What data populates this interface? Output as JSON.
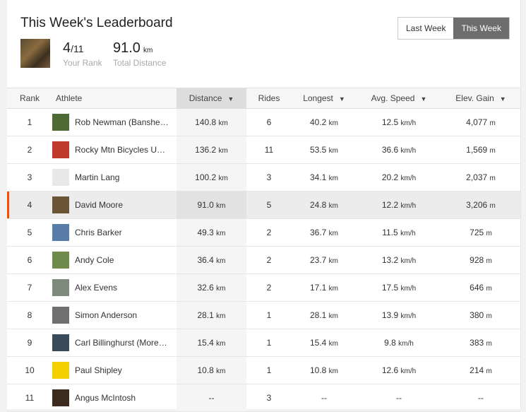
{
  "title": "This Week's Leaderboard",
  "summary": {
    "rank": "4",
    "rank_total": "/11",
    "rank_label": "Your Rank",
    "distance": "91.0",
    "distance_unit": "km",
    "distance_label": "Total Distance"
  },
  "toggle": {
    "last_week": "Last Week",
    "this_week": "This Week",
    "selected": "This Week"
  },
  "accent_color": "#fc4c02",
  "columns": [
    "Rank",
    "Athlete",
    "Distance",
    "Rides",
    "Longest",
    "Avg. Speed",
    "Elev. Gain"
  ],
  "sort_arrow": "▼",
  "rows": [
    {
      "rank": "1",
      "name": "Rob Newman (Banshe…",
      "distance": "140.8",
      "rides": "6",
      "longest": "40.2",
      "speed": "12.5",
      "elev": "4,077",
      "av": "#4f6a35"
    },
    {
      "rank": "2",
      "name": "Rocky Mtn Bicycles U…",
      "distance": "136.2",
      "rides": "11",
      "longest": "53.5",
      "speed": "36.6",
      "elev": "1,569",
      "av": "#c0392b"
    },
    {
      "rank": "3",
      "name": "Martin Lang",
      "distance": "100.2",
      "rides": "3",
      "longest": "34.1",
      "speed": "20.2",
      "elev": "2,037",
      "av": "#e8e8e8"
    },
    {
      "rank": "4",
      "name": "David Moore",
      "distance": "91.0",
      "rides": "5",
      "longest": "24.8",
      "speed": "12.2",
      "elev": "3,206",
      "av": "#6b5535"
    },
    {
      "rank": "5",
      "name": "Chris Barker",
      "distance": "49.3",
      "rides": "2",
      "longest": "36.7",
      "speed": "11.5",
      "elev": "725",
      "av": "#5a7ca8"
    },
    {
      "rank": "6",
      "name": "Andy Cole",
      "distance": "36.4",
      "rides": "2",
      "longest": "23.7",
      "speed": "13.2",
      "elev": "928",
      "av": "#6f8a4a"
    },
    {
      "rank": "7",
      "name": "Alex Evens",
      "distance": "32.6",
      "rides": "2",
      "longest": "17.1",
      "speed": "17.5",
      "elev": "646",
      "av": "#7d8b7a"
    },
    {
      "rank": "8",
      "name": "Simon Anderson",
      "distance": "28.1",
      "rides": "1",
      "longest": "28.1",
      "speed": "13.9",
      "elev": "380",
      "av": "#707070"
    },
    {
      "rank": "9",
      "name": "Carl Billinghurst (More…",
      "distance": "15.4",
      "rides": "1",
      "longest": "15.4",
      "speed": "9.8",
      "elev": "383",
      "av": "#3a4a5a"
    },
    {
      "rank": "10",
      "name": "Paul Shipley",
      "distance": "10.8",
      "rides": "1",
      "longest": "10.8",
      "speed": "12.6",
      "elev": "214",
      "av": "#f5d000"
    },
    {
      "rank": "11",
      "name": "Angus McIntosh",
      "distance": "--",
      "rides": "3",
      "longest": "--",
      "speed": "--",
      "elev": "--",
      "av": "#3a2a20"
    }
  ],
  "units": {
    "distance": "km",
    "speed": "km/h",
    "elev": "m"
  }
}
